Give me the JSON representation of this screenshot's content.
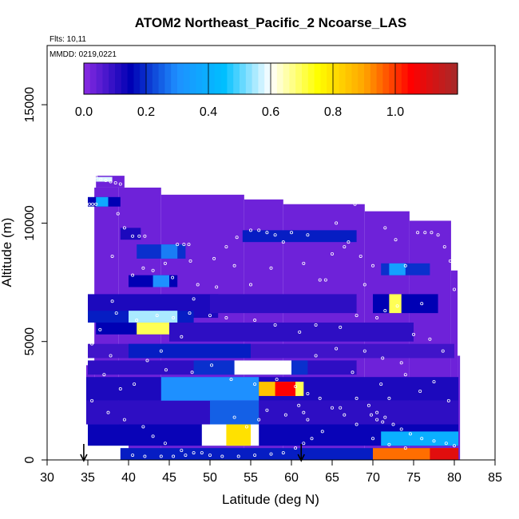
{
  "chart_data": {
    "type": "heatmap",
    "title": "ATOM2 Northeast_Pacific_2 Ncoarse_LAS",
    "flights_label": "Flts: 10,11",
    "dates_label": "MMDD: 0219,0221",
    "xlabel": "Latitude (deg N)",
    "ylabel": "Altitude (m)",
    "xlim": [
      30,
      85
    ],
    "ylim": [
      0,
      17500
    ],
    "x_ticks": [
      "30",
      "35",
      "40",
      "45",
      "50",
      "55",
      "60",
      "65",
      "70",
      "75",
      "80",
      "85"
    ],
    "y_ticks": [
      "0",
      "5000",
      "10000",
      "15000"
    ],
    "colorbar": {
      "range": [
        0,
        1.2
      ],
      "tick_labels": [
        "0.0",
        "0.2",
        "0.4",
        "0.6",
        "0.8",
        "1.0"
      ],
      "tick_values": [
        0,
        0.2,
        0.4,
        0.6,
        0.8,
        1.0
      ],
      "colors": [
        "#8a2be2",
        "#0000b4",
        "#1e90ff",
        "#00bfff",
        "#ffffff",
        "#ffff00",
        "#ffa500",
        "#ff0000",
        "#a52a2a"
      ]
    },
    "arrows_latitude": [
      34.5,
      61.2
    ],
    "background_value": 0.03,
    "coverage": [
      {
        "lat": [
          34.8,
          35.8
        ],
        "alt": [
          1500,
          4000
        ]
      },
      {
        "lat": [
          35.8,
          38.8
        ],
        "alt": [
          1500,
          11500
        ]
      },
      {
        "lat": [
          38.8,
          40.0
        ],
        "alt": [
          900,
          11500
        ]
      },
      {
        "lat": [
          40.0,
          44.0
        ],
        "alt": [
          0,
          11500
        ]
      },
      {
        "lat": [
          44.0,
          54.2
        ],
        "alt": [
          0,
          11200
        ]
      },
      {
        "lat": [
          54.2,
          59.0
        ],
        "alt": [
          0,
          11000
        ]
      },
      {
        "lat": [
          59.0,
          69.0
        ],
        "alt": [
          0,
          10800
        ]
      },
      {
        "lat": [
          69.0,
          74.5
        ],
        "alt": [
          0,
          10500
        ]
      },
      {
        "lat": [
          74.5,
          79.6
        ],
        "alt": [
          0,
          10100
        ]
      },
      {
        "lat": [
          79.6,
          80.4
        ],
        "alt": [
          0,
          8000
        ]
      },
      {
        "lat": [
          80.4,
          80.7
        ],
        "alt": [
          0,
          4400
        ]
      },
      {
        "lat": [
          36.0,
          39.5
        ],
        "alt": [
          11500,
          12000
        ]
      }
    ],
    "features": [
      {
        "lat": [
          36.0,
          38.0
        ],
        "alt": [
          11750,
          11950
        ],
        "value": 0.58
      },
      {
        "lat": [
          35.0,
          39.0
        ],
        "alt": [
          10700,
          11100
        ],
        "value": 0.15
      },
      {
        "lat": [
          36.0,
          37.5
        ],
        "alt": [
          10700,
          11100
        ],
        "value": 0.38
      },
      {
        "lat": [
          39.0,
          41.5
        ],
        "alt": [
          9300,
          9800
        ],
        "value": 0.12
      },
      {
        "lat": [
          41.0,
          47.0
        ],
        "alt": [
          8500,
          9100
        ],
        "value": 0.2
      },
      {
        "lat": [
          44.0,
          46.0
        ],
        "alt": [
          8500,
          9100
        ],
        "value": 0.28
      },
      {
        "lat": [
          54.0,
          68.0
        ],
        "alt": [
          9200,
          9700
        ],
        "value": 0.18
      },
      {
        "lat": [
          71.0,
          77.0
        ],
        "alt": [
          7800,
          8300
        ],
        "value": 0.2
      },
      {
        "lat": [
          72.0,
          74.0
        ],
        "alt": [
          7800,
          8300
        ],
        "value": 0.35
      },
      {
        "lat": [
          40.0,
          46.0
        ],
        "alt": [
          7300,
          7800
        ],
        "value": 0.15
      },
      {
        "lat": [
          43.0,
          45.0
        ],
        "alt": [
          7300,
          7800
        ],
        "value": 0.3
      },
      {
        "lat": [
          35.0,
          51.0
        ],
        "alt": [
          6000,
          7000
        ],
        "value": 0.12
      },
      {
        "lat": [
          50.0,
          68.0
        ],
        "alt": [
          6200,
          7000
        ],
        "value": 0.1
      },
      {
        "lat": [
          70.0,
          78.0
        ],
        "alt": [
          6200,
          7000
        ],
        "value": 0.15
      },
      {
        "lat": [
          72.0,
          73.5
        ],
        "alt": [
          6200,
          7000
        ],
        "value": 0.7
      },
      {
        "lat": [
          35.0,
          48.0
        ],
        "alt": [
          5800,
          6300
        ],
        "value": 0.18
      },
      {
        "lat": [
          40.0,
          46.0
        ],
        "alt": [
          5800,
          6300
        ],
        "value": 0.55
      },
      {
        "lat": [
          36.0,
          48.0
        ],
        "alt": [
          5300,
          5800
        ],
        "value": 0.15
      },
      {
        "lat": [
          41.0,
          46.0
        ],
        "alt": [
          5300,
          5800
        ],
        "value": 0.7
      },
      {
        "lat": [
          45.0,
          75.0
        ],
        "alt": [
          5000,
          5800
        ],
        "value": 0.1
      },
      {
        "lat": [
          35.0,
          80.0
        ],
        "alt": [
          4300,
          4900
        ],
        "value": 0.08
      },
      {
        "lat": [
          40.0,
          55.0
        ],
        "alt": [
          4300,
          4900
        ],
        "value": 0.18
      },
      {
        "lat": [
          35.0,
          68.0
        ],
        "alt": [
          3600,
          4200
        ],
        "value": 0.1
      },
      {
        "lat": [
          48.0,
          62.0
        ],
        "alt": [
          3600,
          4200
        ],
        "value": 0.2
      },
      {
        "lat": [
          53.0,
          60.0
        ],
        "alt": [
          3600,
          4200
        ],
        "value": 0.6
      },
      {
        "lat": [
          34.8,
          80.5
        ],
        "alt": [
          2500,
          3500
        ],
        "value": 0.12
      },
      {
        "lat": [
          44.0,
          56.0
        ],
        "alt": [
          2500,
          3500
        ],
        "value": 0.3
      },
      {
        "lat": [
          56.0,
          61.0
        ],
        "alt": [
          2700,
          3300
        ],
        "value": 0.85
      },
      {
        "lat": [
          58.0,
          60.5
        ],
        "alt": [
          2700,
          3300
        ],
        "value": 1.05
      },
      {
        "lat": [
          60.5,
          61.5
        ],
        "alt": [
          2700,
          3300
        ],
        "value": 0.7
      },
      {
        "lat": [
          34.8,
          80.5
        ],
        "alt": [
          1500,
          2500
        ],
        "value": 0.1
      },
      {
        "lat": [
          50.0,
          56.0
        ],
        "alt": [
          1500,
          2500
        ],
        "value": 0.25
      },
      {
        "lat": [
          35.0,
          80.5
        ],
        "alt": [
          600,
          1500
        ],
        "value": 0.14
      },
      {
        "lat": [
          49.0,
          56.0
        ],
        "alt": [
          600,
          1500
        ],
        "value": 0.6
      },
      {
        "lat": [
          52.0,
          55.0
        ],
        "alt": [
          600,
          1500
        ],
        "value": 0.8
      },
      {
        "lat": [
          71.0,
          80.5
        ],
        "alt": [
          600,
          1200
        ],
        "value": 0.4
      },
      {
        "lat": [
          39.0,
          80.5
        ],
        "alt": [
          0,
          500
        ],
        "value": 0.18
      },
      {
        "lat": [
          70.0,
          80.5
        ],
        "alt": [
          0,
          500
        ],
        "value": 0.95
      },
      {
        "lat": [
          77.0,
          80.5
        ],
        "alt": [
          0,
          500
        ],
        "value": 1.1
      }
    ],
    "points": [
      [
        36.0,
        11950
      ],
      [
        36.6,
        11850
      ],
      [
        37.2,
        11800
      ],
      [
        37.8,
        11750
      ],
      [
        38.4,
        11700
      ],
      [
        39.0,
        11650
      ],
      [
        35.2,
        10800
      ],
      [
        35.6,
        10800
      ],
      [
        36.0,
        10800
      ],
      [
        38.7,
        10400
      ],
      [
        39.5,
        9800
      ],
      [
        40.5,
        9450
      ],
      [
        41.3,
        9450
      ],
      [
        42.0,
        9450
      ],
      [
        46.0,
        9100
      ],
      [
        46.8,
        9100
      ],
      [
        47.4,
        9100
      ],
      [
        44.5,
        8300
      ],
      [
        45.4,
        7700
      ],
      [
        43.0,
        8000
      ],
      [
        40.5,
        7800
      ],
      [
        38.0,
        8600
      ],
      [
        41.8,
        8100
      ],
      [
        47.6,
        8400
      ],
      [
        48.5,
        7400
      ],
      [
        50.5,
        8500
      ],
      [
        52.0,
        9000
      ],
      [
        53.3,
        9400
      ],
      [
        55.0,
        9700
      ],
      [
        56.0,
        9700
      ],
      [
        57.0,
        9600
      ],
      [
        58.0,
        9500
      ],
      [
        59.0,
        9200
      ],
      [
        60.0,
        9600
      ],
      [
        62.0,
        9500
      ],
      [
        63.5,
        7600
      ],
      [
        64.2,
        7600
      ],
      [
        65.0,
        8700
      ],
      [
        66.5,
        9000
      ],
      [
        67.8,
        10800
      ],
      [
        70.0,
        10600
      ],
      [
        71.5,
        9800
      ],
      [
        72.8,
        9300
      ],
      [
        74.0,
        8200
      ],
      [
        75.5,
        9600
      ],
      [
        76.4,
        9600
      ],
      [
        77.2,
        9600
      ],
      [
        78.0,
        9500
      ],
      [
        78.8,
        9000
      ],
      [
        79.5,
        8400
      ],
      [
        80.0,
        7200
      ],
      [
        76.0,
        6600
      ],
      [
        73.0,
        6500
      ],
      [
        71.5,
        6300
      ],
      [
        70.5,
        6000
      ],
      [
        68.0,
        6100
      ],
      [
        66.0,
        5600
      ],
      [
        63.0,
        5700
      ],
      [
        61.0,
        5400
      ],
      [
        58.0,
        5700
      ],
      [
        55.5,
        5900
      ],
      [
        52.0,
        6000
      ],
      [
        50.0,
        6100
      ],
      [
        47.5,
        6200
      ],
      [
        45.5,
        6000
      ],
      [
        43.5,
        6100
      ],
      [
        41.0,
        5900
      ],
      [
        38.5,
        6200
      ],
      [
        36.5,
        5500
      ],
      [
        35.5,
        4900
      ],
      [
        37.8,
        4400
      ],
      [
        42.3,
        4200
      ],
      [
        44.6,
        3800
      ],
      [
        47.8,
        3700
      ],
      [
        50.2,
        4000
      ],
      [
        52.6,
        3400
      ],
      [
        55.5,
        3200
      ],
      [
        58.2,
        3400
      ],
      [
        60.5,
        3100
      ],
      [
        62.0,
        2800
      ],
      [
        63.5,
        2600
      ],
      [
        65.0,
        2200
      ],
      [
        66.0,
        2200
      ],
      [
        68.0,
        2600
      ],
      [
        69.5,
        2300
      ],
      [
        70.5,
        2000
      ],
      [
        71.5,
        1800
      ],
      [
        72.5,
        1500
      ],
      [
        73.5,
        1300
      ],
      [
        74.6,
        1100
      ],
      [
        76.0,
        900
      ],
      [
        77.5,
        800
      ],
      [
        79.0,
        700
      ],
      [
        80.0,
        600
      ],
      [
        35.5,
        2500
      ],
      [
        37.5,
        2000
      ],
      [
        39.5,
        1700
      ],
      [
        41.8,
        1400
      ],
      [
        43.0,
        1000
      ],
      [
        44.5,
        700
      ],
      [
        46.5,
        400
      ],
      [
        48.0,
        300
      ],
      [
        50.0,
        200
      ],
      [
        51.5,
        150
      ],
      [
        53.5,
        150
      ],
      [
        55.5,
        200
      ],
      [
        57.5,
        250
      ],
      [
        59.0,
        300
      ],
      [
        60.5,
        500
      ],
      [
        61.5,
        700
      ],
      [
        62.5,
        900
      ],
      [
        63.8,
        1200
      ],
      [
        40.5,
        200
      ],
      [
        42.0,
        150
      ],
      [
        44.0,
        150
      ],
      [
        45.5,
        150
      ],
      [
        47.0,
        200
      ],
      [
        49.0,
        300
      ],
      [
        51.0,
        700
      ],
      [
        53.0,
        1800
      ],
      [
        54.5,
        1400
      ],
      [
        56.0,
        1700
      ],
      [
        57.0,
        2100
      ],
      [
        59.3,
        1900
      ],
      [
        71.0,
        3200
      ],
      [
        72.0,
        2600
      ],
      [
        74.0,
        3600
      ],
      [
        75.8,
        2900
      ],
      [
        77.5,
        3300
      ],
      [
        79.3,
        2500
      ],
      [
        65.5,
        10000
      ],
      [
        67.0,
        9200
      ],
      [
        68.5,
        8600
      ],
      [
        70.0,
        8200
      ],
      [
        69.0,
        7400
      ],
      [
        61.5,
        8300
      ],
      [
        57.5,
        8100
      ],
      [
        55.0,
        7400
      ],
      [
        53.0,
        8200
      ],
      [
        50.8,
        7300
      ],
      [
        48.0,
        6800
      ],
      [
        46.5,
        5200
      ],
      [
        44.0,
        4600
      ],
      [
        40.7,
        3200
      ],
      [
        39.0,
        3000
      ],
      [
        37.0,
        3600
      ],
      [
        38.0,
        6700
      ],
      [
        63.0,
        4400
      ],
      [
        65.5,
        4700
      ],
      [
        67.5,
        3700
      ],
      [
        69.0,
        4600
      ],
      [
        71.2,
        4300
      ],
      [
        73.5,
        4100
      ],
      [
        75.0,
        5300
      ],
      [
        77.0,
        5100
      ],
      [
        78.6,
        4600
      ],
      [
        66.5,
        1900
      ],
      [
        68.0,
        1500
      ],
      [
        70.0,
        900
      ],
      [
        72.0,
        650
      ],
      [
        74.0,
        500
      ],
      [
        69.8,
        1900
      ],
      [
        70.5,
        1700
      ],
      [
        71.2,
        1600
      ],
      [
        60.9,
        2300
      ],
      [
        61.5,
        2000
      ],
      [
        62.0,
        1700
      ]
    ]
  }
}
